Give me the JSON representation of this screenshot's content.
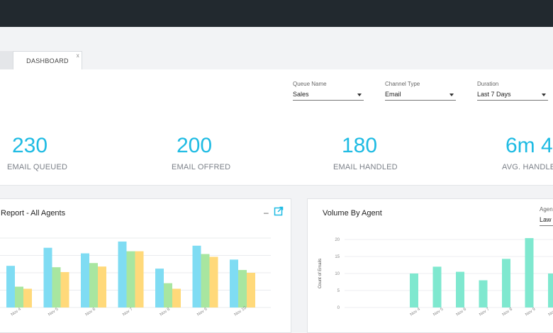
{
  "tabs": [
    {
      "label": "DASHBOARD",
      "close": "x"
    }
  ],
  "filters": [
    {
      "label": "Queue Name",
      "value": "Sales"
    },
    {
      "label": "Channel Type",
      "value": "Email"
    },
    {
      "label": "Duration",
      "value": "Last 7 Days"
    }
  ],
  "kpis": [
    {
      "value": "230",
      "label": "EMAIL QUEUED"
    },
    {
      "value": "200",
      "label": "EMAIL OFFRED"
    },
    {
      "value": "180",
      "label": "EMAIL HANDLED"
    },
    {
      "value": "6m 4",
      "label": "AVG. HANDLE"
    }
  ],
  "report_card": {
    "title": "Report -  All Agents",
    "minimize": "–"
  },
  "volume_card": {
    "title": "Volume By Agent",
    "agent_label": "Agen",
    "agent_value": "Law"
  },
  "colors": {
    "accent": "#1ebbe3",
    "blue": "#7fdcf3",
    "green": "#a8e6a0",
    "yellow": "#ffd97a",
    "teal": "#7fe8cf"
  },
  "chart_data": [
    {
      "type": "bar",
      "title": "Report -  All Agents",
      "categories": [
        "Nov 4",
        "Nov 5",
        "Nov 6",
        "Nov 7",
        "Nov 8",
        "Nov 9",
        "Nov 10"
      ],
      "series": [
        {
          "values": [
            60,
            86,
            78,
            95,
            56,
            89,
            69
          ]
        },
        {
          "values": [
            30,
            58,
            64,
            81,
            35,
            77,
            54
          ]
        },
        {
          "values": [
            27,
            51,
            59,
            81,
            27,
            73,
            50
          ]
        }
      ],
      "ylim": [
        0,
        100
      ]
    },
    {
      "type": "bar",
      "title": "Volume By Agent",
      "ylabel": "Count of Emails",
      "categories": [
        "Nov 4",
        "Nov 5",
        "Nov 6",
        "Nov 7",
        "Nov 8",
        "Nov 9",
        "Nov 1"
      ],
      "values": [
        10,
        12,
        10.5,
        8,
        14.3,
        20.4,
        10
      ],
      "yticks": [
        "0",
        "5",
        "10",
        "15",
        "20"
      ],
      "ylim": [
        0,
        20
      ]
    }
  ]
}
